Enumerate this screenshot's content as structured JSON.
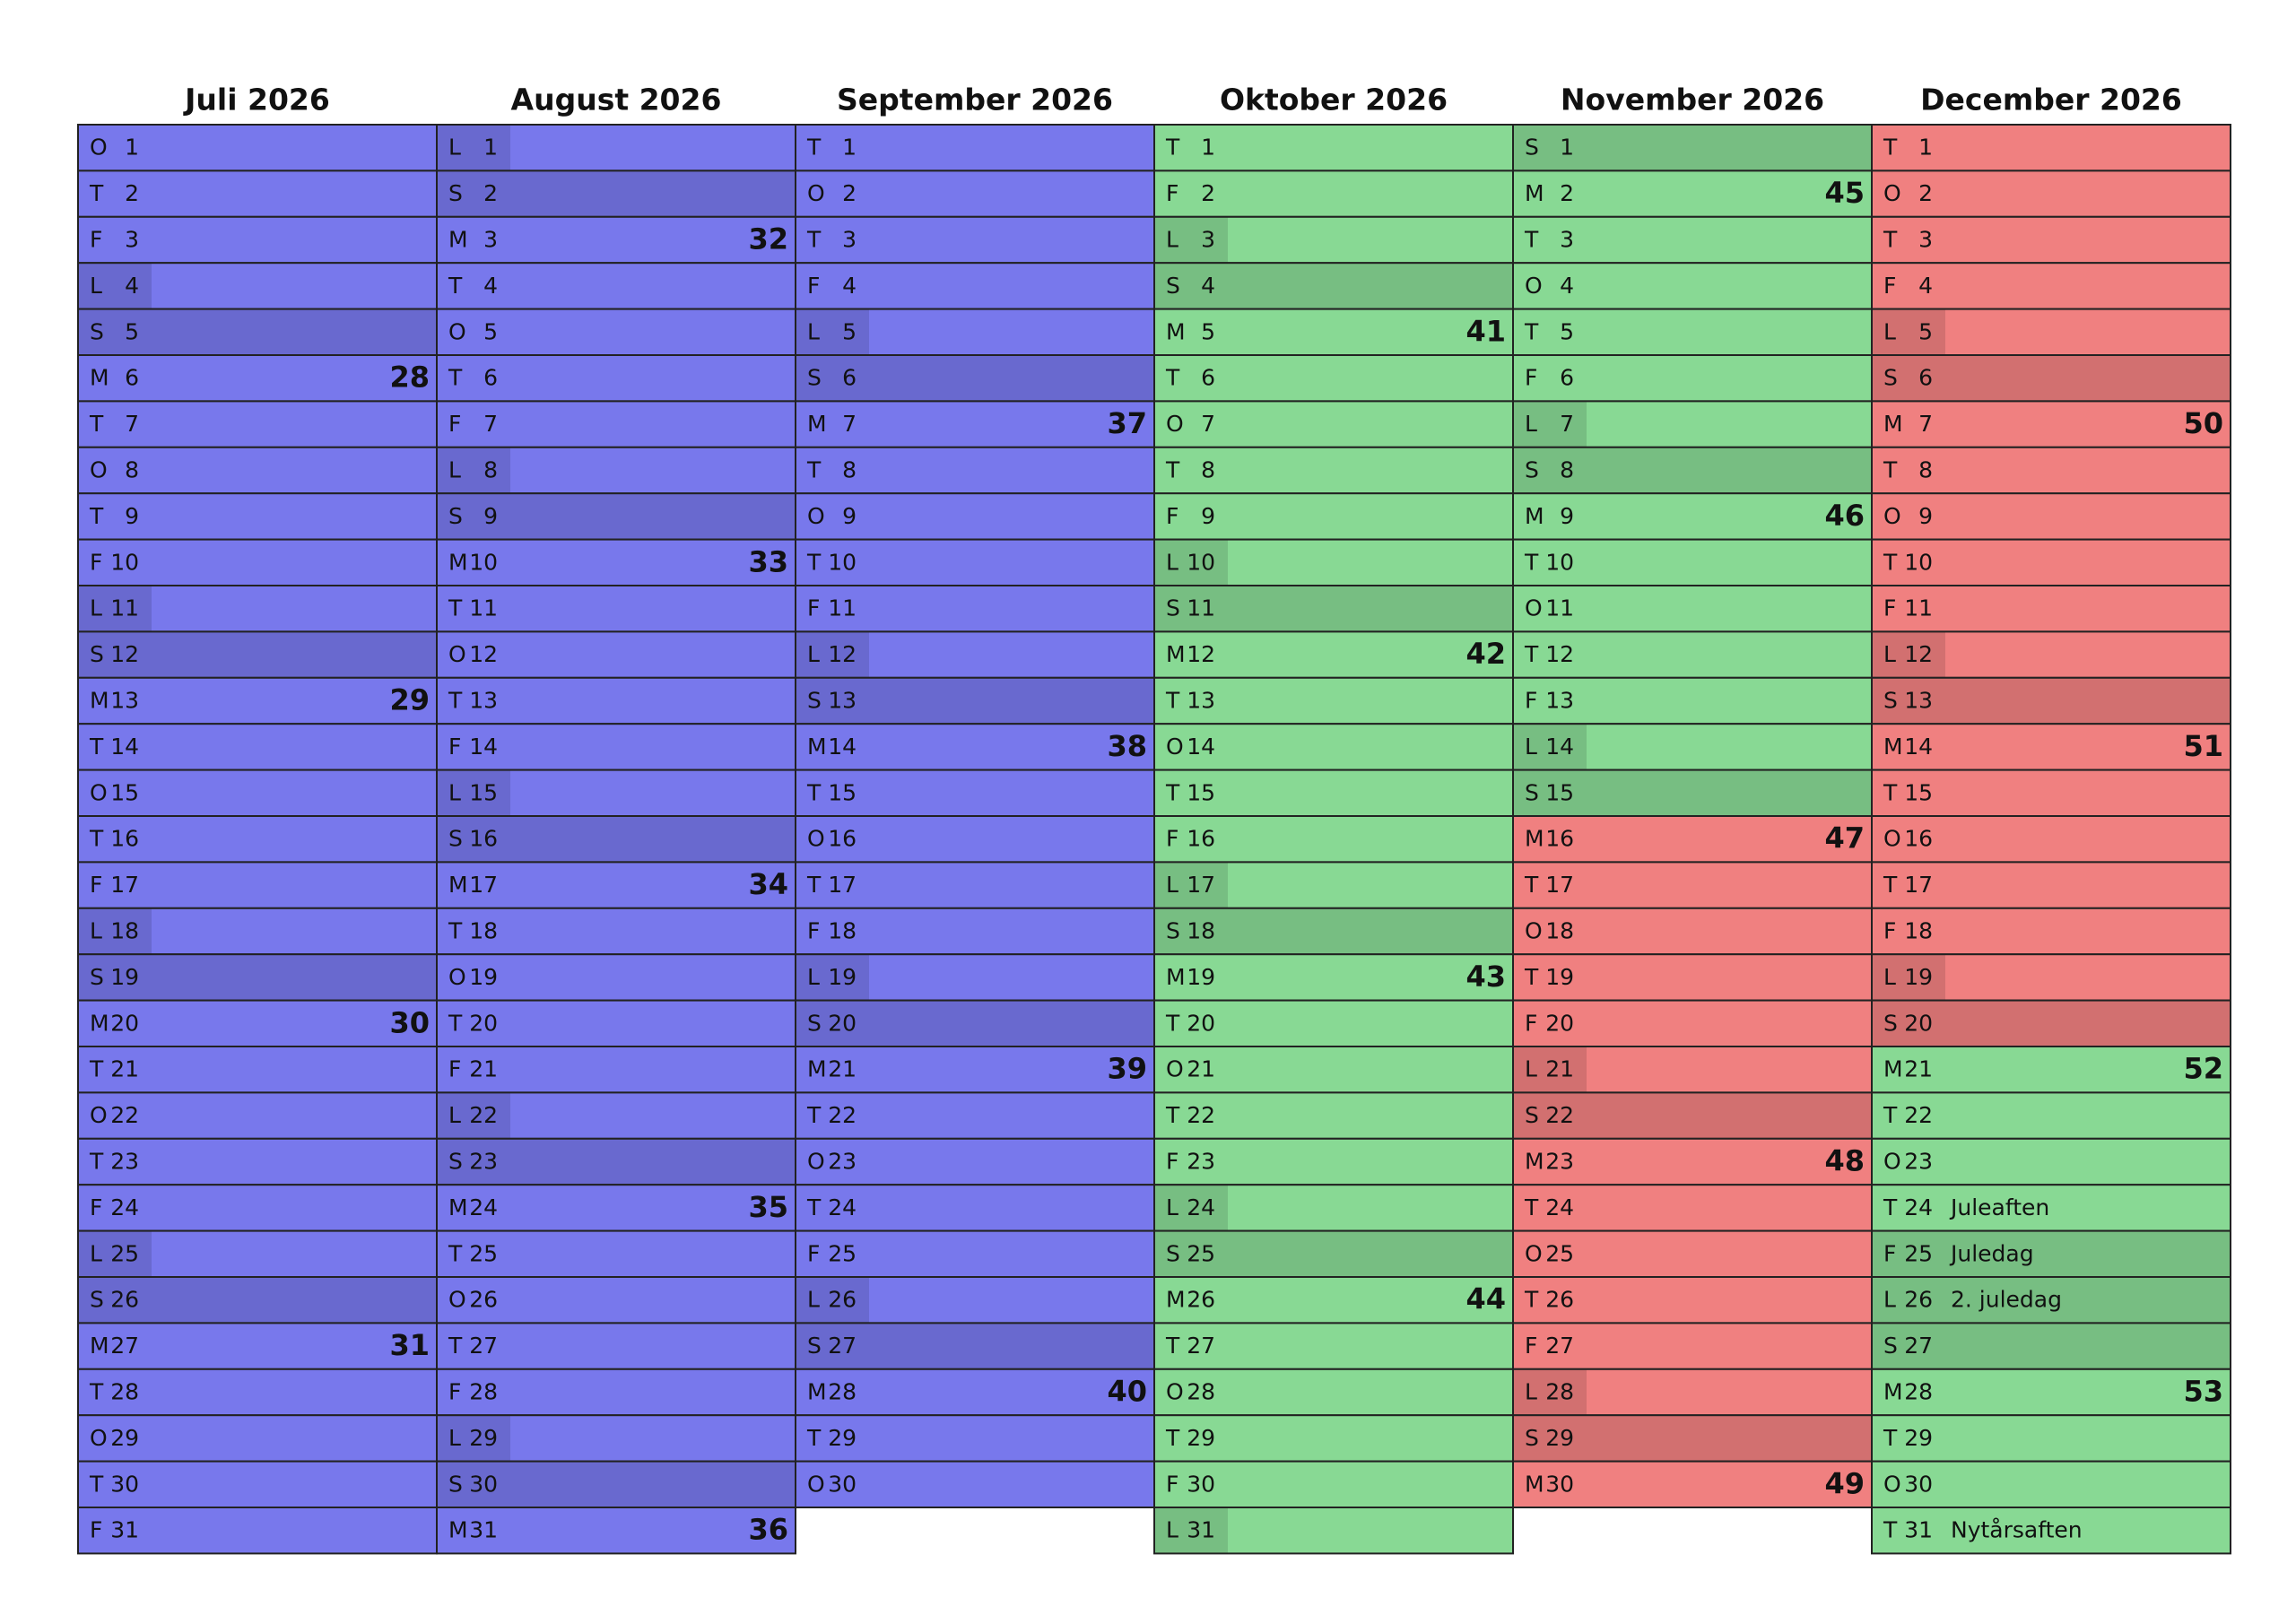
{
  "months": [
    {
      "title": "Juli 2026",
      "color": "#7878ec",
      "days": [
        {
          "w": "O",
          "d": 1
        },
        {
          "w": "T",
          "d": 2
        },
        {
          "w": "F",
          "d": 3
        },
        {
          "w": "L",
          "d": 4
        },
        {
          "w": "S",
          "d": 5
        },
        {
          "w": "M",
          "d": 6,
          "wk": 28
        },
        {
          "w": "T",
          "d": 7
        },
        {
          "w": "O",
          "d": 8
        },
        {
          "w": "T",
          "d": 9
        },
        {
          "w": "F",
          "d": 10
        },
        {
          "w": "L",
          "d": 11
        },
        {
          "w": "S",
          "d": 12
        },
        {
          "w": "M",
          "d": 13,
          "wk": 29
        },
        {
          "w": "T",
          "d": 14
        },
        {
          "w": "O",
          "d": 15
        },
        {
          "w": "T",
          "d": 16
        },
        {
          "w": "F",
          "d": 17
        },
        {
          "w": "L",
          "d": 18
        },
        {
          "w": "S",
          "d": 19
        },
        {
          "w": "M",
          "d": 20,
          "wk": 30
        },
        {
          "w": "T",
          "d": 21
        },
        {
          "w": "O",
          "d": 22
        },
        {
          "w": "T",
          "d": 23
        },
        {
          "w": "F",
          "d": 24
        },
        {
          "w": "L",
          "d": 25
        },
        {
          "w": "S",
          "d": 26
        },
        {
          "w": "M",
          "d": 27,
          "wk": 31
        },
        {
          "w": "T",
          "d": 28
        },
        {
          "w": "O",
          "d": 29
        },
        {
          "w": "T",
          "d": 30
        },
        {
          "w": "F",
          "d": 31
        }
      ]
    },
    {
      "title": "August 2026",
      "color": "#7878ec",
      "days": [
        {
          "w": "L",
          "d": 1
        },
        {
          "w": "S",
          "d": 2
        },
        {
          "w": "M",
          "d": 3,
          "wk": 32
        },
        {
          "w": "T",
          "d": 4
        },
        {
          "w": "O",
          "d": 5
        },
        {
          "w": "T",
          "d": 6
        },
        {
          "w": "F",
          "d": 7
        },
        {
          "w": "L",
          "d": 8
        },
        {
          "w": "S",
          "d": 9
        },
        {
          "w": "M",
          "d": 10,
          "wk": 33
        },
        {
          "w": "T",
          "d": 11
        },
        {
          "w": "O",
          "d": 12
        },
        {
          "w": "T",
          "d": 13
        },
        {
          "w": "F",
          "d": 14
        },
        {
          "w": "L",
          "d": 15
        },
        {
          "w": "S",
          "d": 16
        },
        {
          "w": "M",
          "d": 17,
          "wk": 34
        },
        {
          "w": "T",
          "d": 18
        },
        {
          "w": "O",
          "d": 19
        },
        {
          "w": "T",
          "d": 20
        },
        {
          "w": "F",
          "d": 21
        },
        {
          "w": "L",
          "d": 22
        },
        {
          "w": "S",
          "d": 23
        },
        {
          "w": "M",
          "d": 24,
          "wk": 35
        },
        {
          "w": "T",
          "d": 25
        },
        {
          "w": "O",
          "d": 26
        },
        {
          "w": "T",
          "d": 27
        },
        {
          "w": "F",
          "d": 28
        },
        {
          "w": "L",
          "d": 29
        },
        {
          "w": "S",
          "d": 30
        },
        {
          "w": "M",
          "d": 31,
          "wk": 36
        }
      ]
    },
    {
      "title": "September 2026",
      "color": "#7878ec",
      "days": [
        {
          "w": "T",
          "d": 1
        },
        {
          "w": "O",
          "d": 2
        },
        {
          "w": "T",
          "d": 3
        },
        {
          "w": "F",
          "d": 4
        },
        {
          "w": "L",
          "d": 5
        },
        {
          "w": "S",
          "d": 6
        },
        {
          "w": "M",
          "d": 7,
          "wk": 37
        },
        {
          "w": "T",
          "d": 8
        },
        {
          "w": "O",
          "d": 9
        },
        {
          "w": "T",
          "d": 10
        },
        {
          "w": "F",
          "d": 11
        },
        {
          "w": "L",
          "d": 12
        },
        {
          "w": "S",
          "d": 13
        },
        {
          "w": "M",
          "d": 14,
          "wk": 38
        },
        {
          "w": "T",
          "d": 15
        },
        {
          "w": "O",
          "d": 16
        },
        {
          "w": "T",
          "d": 17
        },
        {
          "w": "F",
          "d": 18
        },
        {
          "w": "L",
          "d": 19
        },
        {
          "w": "S",
          "d": 20
        },
        {
          "w": "M",
          "d": 21,
          "wk": 39
        },
        {
          "w": "T",
          "d": 22
        },
        {
          "w": "O",
          "d": 23
        },
        {
          "w": "T",
          "d": 24
        },
        {
          "w": "F",
          "d": 25
        },
        {
          "w": "L",
          "d": 26
        },
        {
          "w": "S",
          "d": 27
        },
        {
          "w": "M",
          "d": 28,
          "wk": 40
        },
        {
          "w": "T",
          "d": 29
        },
        {
          "w": "O",
          "d": 30
        }
      ]
    },
    {
      "title": "Oktober 2026",
      "color": "#88d994",
      "days": [
        {
          "w": "T",
          "d": 1
        },
        {
          "w": "F",
          "d": 2
        },
        {
          "w": "L",
          "d": 3
        },
        {
          "w": "S",
          "d": 4
        },
        {
          "w": "M",
          "d": 5,
          "wk": 41
        },
        {
          "w": "T",
          "d": 6
        },
        {
          "w": "O",
          "d": 7
        },
        {
          "w": "T",
          "d": 8
        },
        {
          "w": "F",
          "d": 9
        },
        {
          "w": "L",
          "d": 10
        },
        {
          "w": "S",
          "d": 11
        },
        {
          "w": "M",
          "d": 12,
          "wk": 42
        },
        {
          "w": "T",
          "d": 13
        },
        {
          "w": "O",
          "d": 14
        },
        {
          "w": "T",
          "d": 15
        },
        {
          "w": "F",
          "d": 16
        },
        {
          "w": "L",
          "d": 17
        },
        {
          "w": "S",
          "d": 18
        },
        {
          "w": "M",
          "d": 19,
          "wk": 43
        },
        {
          "w": "T",
          "d": 20
        },
        {
          "w": "O",
          "d": 21
        },
        {
          "w": "T",
          "d": 22
        },
        {
          "w": "F",
          "d": 23
        },
        {
          "w": "L",
          "d": 24
        },
        {
          "w": "S",
          "d": 25
        },
        {
          "w": "M",
          "d": 26,
          "wk": 44
        },
        {
          "w": "T",
          "d": 27
        },
        {
          "w": "O",
          "d": 28
        },
        {
          "w": "T",
          "d": 29
        },
        {
          "w": "F",
          "d": 30
        },
        {
          "w": "L",
          "d": 31
        }
      ]
    },
    {
      "title": "November 2026",
      "color": "#88d994",
      "days": [
        {
          "w": "S",
          "d": 1
        },
        {
          "w": "M",
          "d": 2,
          "wk": 45
        },
        {
          "w": "T",
          "d": 3
        },
        {
          "w": "O",
          "d": 4
        },
        {
          "w": "T",
          "d": 5
        },
        {
          "w": "F",
          "d": 6
        },
        {
          "w": "L",
          "d": 7
        },
        {
          "w": "S",
          "d": 8
        },
        {
          "w": "M",
          "d": 9,
          "wk": 46
        },
        {
          "w": "T",
          "d": 10
        },
        {
          "w": "O",
          "d": 11
        },
        {
          "w": "T",
          "d": 12
        },
        {
          "w": "F",
          "d": 13
        },
        {
          "w": "L",
          "d": 14
        },
        {
          "w": "S",
          "d": 15
        },
        {
          "w": "M",
          "d": 16,
          "wk": 47,
          "color": "#f08080"
        },
        {
          "w": "T",
          "d": 17,
          "color": "#f08080"
        },
        {
          "w": "O",
          "d": 18,
          "color": "#f08080"
        },
        {
          "w": "T",
          "d": 19,
          "color": "#f08080"
        },
        {
          "w": "F",
          "d": 20,
          "color": "#f08080"
        },
        {
          "w": "L",
          "d": 21,
          "color": "#f08080"
        },
        {
          "w": "S",
          "d": 22,
          "color": "#f08080"
        },
        {
          "w": "M",
          "d": 23,
          "wk": 48,
          "color": "#f08080"
        },
        {
          "w": "T",
          "d": 24,
          "color": "#f08080"
        },
        {
          "w": "O",
          "d": 25,
          "color": "#f08080"
        },
        {
          "w": "T",
          "d": 26,
          "color": "#f08080"
        },
        {
          "w": "F",
          "d": 27,
          "color": "#f08080"
        },
        {
          "w": "L",
          "d": 28,
          "color": "#f08080"
        },
        {
          "w": "S",
          "d": 29,
          "color": "#f08080"
        },
        {
          "w": "M",
          "d": 30,
          "wk": 49,
          "color": "#f08080"
        }
      ]
    },
    {
      "title": "December 2026",
      "color": "#f08080",
      "days": [
        {
          "w": "T",
          "d": 1
        },
        {
          "w": "O",
          "d": 2
        },
        {
          "w": "T",
          "d": 3
        },
        {
          "w": "F",
          "d": 4
        },
        {
          "w": "L",
          "d": 5
        },
        {
          "w": "S",
          "d": 6
        },
        {
          "w": "M",
          "d": 7,
          "wk": 50
        },
        {
          "w": "T",
          "d": 8
        },
        {
          "w": "O",
          "d": 9
        },
        {
          "w": "T",
          "d": 10
        },
        {
          "w": "F",
          "d": 11
        },
        {
          "w": "L",
          "d": 12
        },
        {
          "w": "S",
          "d": 13
        },
        {
          "w": "M",
          "d": 14,
          "wk": 51
        },
        {
          "w": "T",
          "d": 15
        },
        {
          "w": "O",
          "d": 16
        },
        {
          "w": "T",
          "d": 17
        },
        {
          "w": "F",
          "d": 18
        },
        {
          "w": "L",
          "d": 19
        },
        {
          "w": "S",
          "d": 20
        },
        {
          "w": "M",
          "d": 21,
          "wk": 52,
          "color": "#88d994"
        },
        {
          "w": "T",
          "d": 22,
          "color": "#88d994"
        },
        {
          "w": "O",
          "d": 23,
          "color": "#88d994"
        },
        {
          "w": "T",
          "d": 24,
          "note": "Juleaften",
          "color": "#88d994"
        },
        {
          "w": "F",
          "d": 25,
          "note": "Juledag",
          "holiday": true,
          "color": "#88d994"
        },
        {
          "w": "L",
          "d": 26,
          "note": "2. juledag",
          "holiday": true,
          "color": "#88d994"
        },
        {
          "w": "S",
          "d": 27,
          "color": "#88d994"
        },
        {
          "w": "M",
          "d": 28,
          "wk": 53,
          "color": "#88d994"
        },
        {
          "w": "T",
          "d": 29,
          "color": "#88d994"
        },
        {
          "w": "O",
          "d": 30,
          "color": "#88d994"
        },
        {
          "w": "T",
          "d": 31,
          "note": "Nytårsaften",
          "color": "#88d994"
        }
      ]
    }
  ]
}
